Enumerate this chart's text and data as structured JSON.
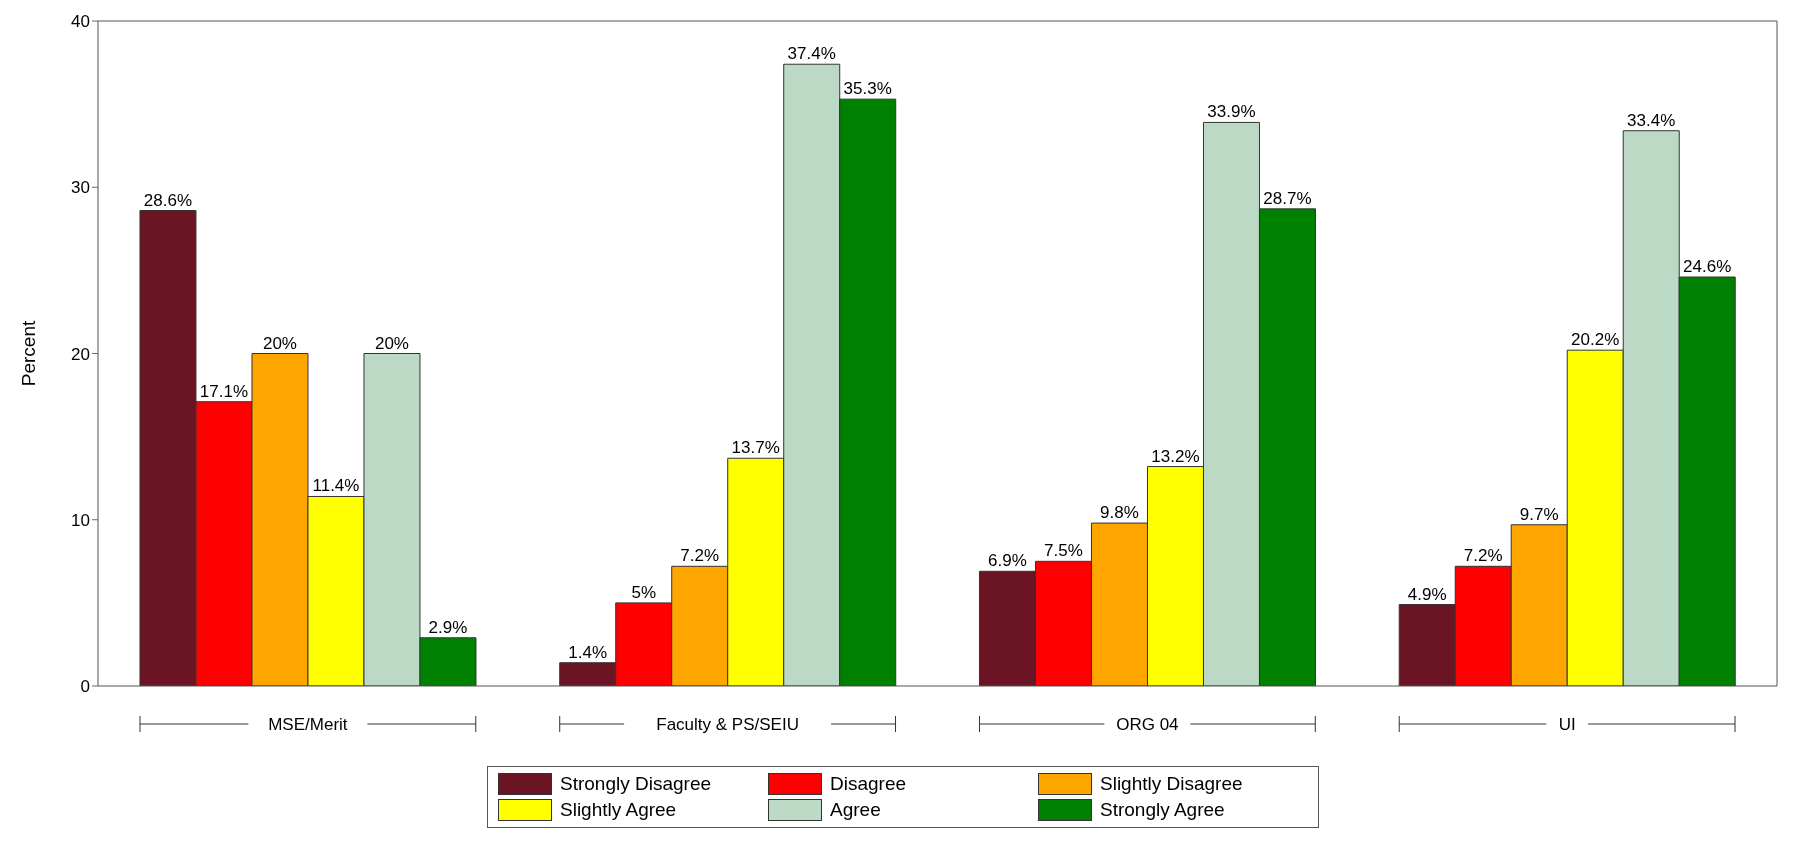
{
  "chart_data": {
    "type": "bar",
    "ylabel": "Percent",
    "categories": [
      "MSE/Merit",
      "Faculty & PS/SEIU",
      "ORG 04",
      "UI"
    ],
    "series": [
      {
        "name": "Strongly Disagree",
        "color": "#6b1424",
        "values": [
          28.6,
          1.4,
          6.9,
          4.9
        ],
        "value_labels": [
          "28.6%",
          "1.4%",
          "6.9%",
          "4.9%"
        ]
      },
      {
        "name": "Disagree",
        "color": "#ff0000",
        "values": [
          17.1,
          5,
          7.5,
          7.2
        ],
        "value_labels": [
          "17.1%",
          "5%",
          "7.5%",
          "7.2%"
        ]
      },
      {
        "name": "Slightly Disagree",
        "color": "#ffa500",
        "values": [
          20,
          7.2,
          9.8,
          9.7
        ],
        "value_labels": [
          "20%",
          "7.2%",
          "9.8%",
          "9.7%"
        ]
      },
      {
        "name": "Slightly Agree",
        "color": "#ffff00",
        "values": [
          11.4,
          13.7,
          13.2,
          20.2
        ],
        "value_labels": [
          "11.4%",
          "13.7%",
          "13.2%",
          "20.2%"
        ]
      },
      {
        "name": "Agree",
        "color": "#bcd9c6",
        "values": [
          20,
          37.4,
          33.9,
          33.4
        ],
        "value_labels": [
          "20%",
          "37.4%",
          "33.9%",
          "33.4%"
        ]
      },
      {
        "name": "Strongly Agree",
        "color": "#008000",
        "values": [
          2.9,
          35.3,
          28.7,
          24.6
        ],
        "value_labels": [
          "2.9%",
          "35.3%",
          "28.7%",
          "24.6%"
        ]
      }
    ],
    "ylim": [
      0,
      40
    ],
    "yticks": [
      0,
      10,
      20,
      30,
      40
    ],
    "grid": false,
    "legend": "bottom"
  }
}
